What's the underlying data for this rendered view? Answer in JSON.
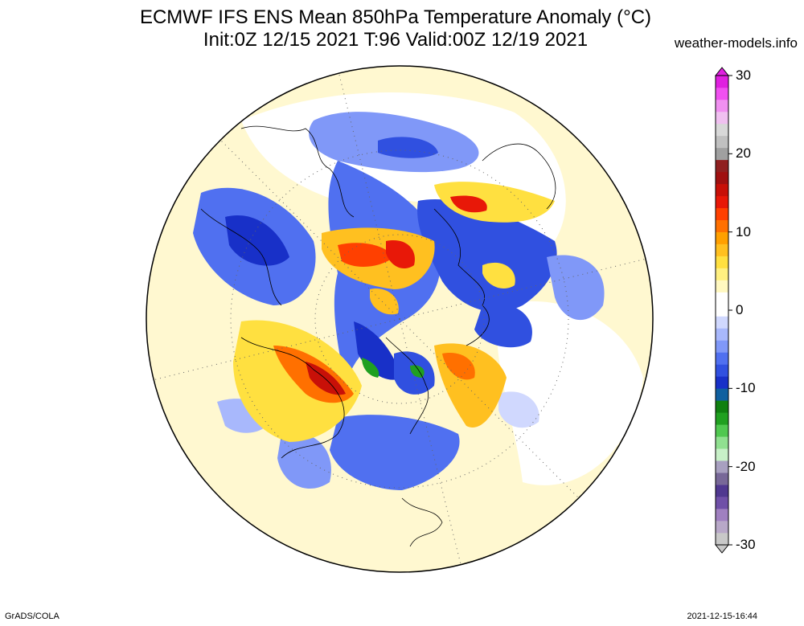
{
  "header": {
    "title_line1": "ECMWF IFS ENS Mean 850hPa Temperature Anomaly (°C)",
    "title_line2": "Init:0Z 12/15 2021  T:96 Valid:00Z 12/19 2021",
    "site": "weather-models.info"
  },
  "footer": {
    "credit": "GrADS/COLA",
    "timestamp": "2021-12-15-16:44"
  },
  "colorbar": {
    "labels": [
      "30",
      "20",
      "10",
      "0",
      "-10",
      "-20",
      "-30"
    ],
    "colors": [
      "#c8c8c8",
      "#b8a8c8",
      "#a080c0",
      "#7050a8",
      "#503890",
      "#786898",
      "#a8a0c0",
      "#c8f0c8",
      "#90e090",
      "#50c850",
      "#20a020",
      "#108010",
      "#1060a0",
      "#1830c8",
      "#3050e0",
      "#5070f0",
      "#8098f8",
      "#a8b8fc",
      "#d0d8fe",
      "#ffffff",
      "#ffffff",
      "#fff8c0",
      "#fff080",
      "#ffe040",
      "#ffc020",
      "#ffa000",
      "#ff7000",
      "#ff4000",
      "#e81808",
      "#c81008",
      "#a01010",
      "#902020",
      "#a0a0a0",
      "#c0c0c0",
      "#d8d8d8",
      "#f0c0f0",
      "#f090f0",
      "#f050f0",
      "#e020e0"
    ]
  },
  "map": {
    "projection": "north polar stereographic",
    "background_color": "#ffffe0"
  }
}
